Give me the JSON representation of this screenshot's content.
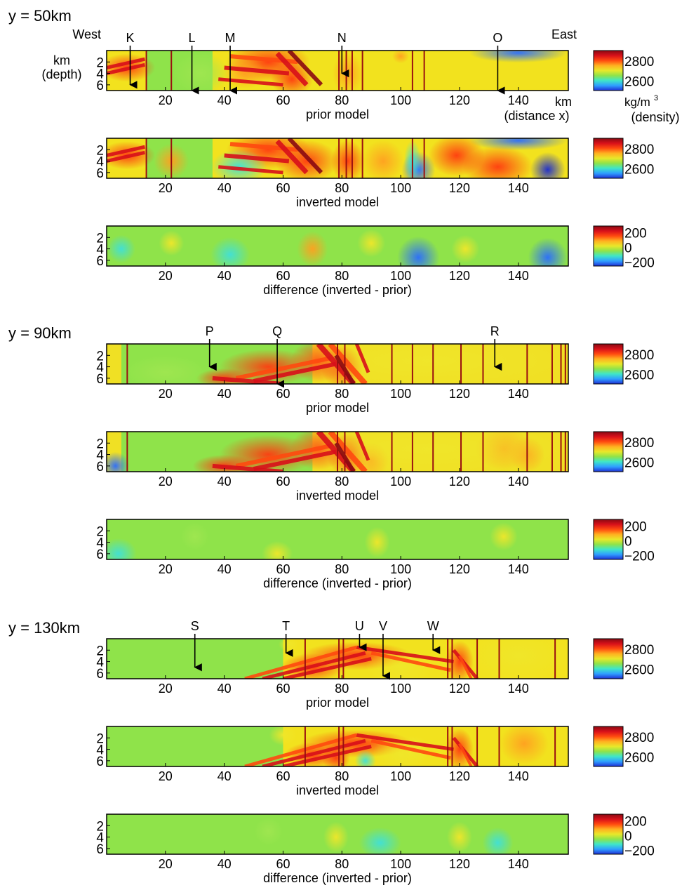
{
  "sections": [
    {
      "title": "y = 50km",
      "markers": [
        {
          "label": "K",
          "x": 8,
          "depth_end": 6
        },
        {
          "label": "L",
          "x": 29,
          "depth_end": 7
        },
        {
          "label": "M",
          "x": 42,
          "depth_end": 7
        },
        {
          "label": "N",
          "x": 80,
          "depth_end": 4
        },
        {
          "label": "O",
          "x": 133,
          "depth_end": 7
        }
      ],
      "direction_labels": {
        "left": "West",
        "right": "East"
      },
      "faults": [
        13.5,
        22,
        79,
        81.5,
        83.5,
        87,
        104,
        108
      ],
      "panels": [
        {
          "caption": "prior model",
          "kind": "prior",
          "colorbar": {
            "ticks": [
              "2800",
              "2600"
            ],
            "unit": "kg/m",
            "unit_sup": "3",
            "quantity": "(density)"
          }
        },
        {
          "caption": "inverted model",
          "kind": "inverted",
          "colorbar": {
            "ticks": [
              "2800",
              "2600"
            ]
          }
        },
        {
          "caption": "difference (inverted - prior)",
          "kind": "difference",
          "colorbar": {
            "ticks": [
              "200",
              "0",
              "−200"
            ]
          }
        }
      ]
    },
    {
      "title": "y = 90km",
      "markers": [
        {
          "label": "P",
          "x": 35,
          "depth_end": 4
        },
        {
          "label": "Q",
          "x": 58,
          "depth_end": 7
        },
        {
          "label": "R",
          "x": 132,
          "depth_end": 4
        }
      ],
      "faults": [
        7,
        78.5,
        81,
        97,
        104,
        111,
        120.5,
        128,
        143,
        151.5,
        154.5,
        156
      ],
      "panels": [
        {
          "caption": "prior model",
          "kind": "prior",
          "colorbar": {
            "ticks": [
              "2800",
              "2600"
            ]
          }
        },
        {
          "caption": "inverted model",
          "kind": "inverted",
          "colorbar": {
            "ticks": [
              "2800",
              "2600"
            ]
          }
        },
        {
          "caption": "difference (inverted - prior)",
          "kind": "difference",
          "colorbar": {
            "ticks": [
              "200",
              "0",
              "−200"
            ]
          }
        }
      ]
    },
    {
      "title": "y = 130km",
      "markers": [
        {
          "label": "S",
          "x": 30,
          "depth_end": 5
        },
        {
          "label": "T",
          "x": 61,
          "depth_end": 2.5
        },
        {
          "label": "U",
          "x": 86,
          "depth_end": 1.5
        },
        {
          "label": "V",
          "x": 94,
          "depth_end": 6.5
        },
        {
          "label": "W",
          "x": 111,
          "depth_end": 2
        }
      ],
      "faults": [
        67.5,
        79,
        80.5,
        116,
        117.5,
        126,
        133.5,
        152.5
      ],
      "panels": [
        {
          "caption": "prior model",
          "kind": "prior",
          "colorbar": {
            "ticks": [
              "2800",
              "2600"
            ]
          }
        },
        {
          "caption": "inverted model",
          "kind": "inverted",
          "colorbar": {
            "ticks": [
              "2800",
              "2600"
            ]
          }
        },
        {
          "caption": "difference (inverted - prior)",
          "kind": "difference",
          "colorbar": {
            "ticks": [
              "200",
              "0",
              "−200"
            ]
          }
        }
      ]
    }
  ],
  "axes": {
    "x_ticks": [
      20,
      40,
      60,
      80,
      100,
      120,
      140
    ],
    "y_ticks": [
      2,
      4,
      6
    ],
    "x_range": [
      0,
      157
    ],
    "depth_range": [
      0,
      7
    ],
    "x_unit": "km",
    "x_quantity": "(distance x)",
    "y_unit": "km",
    "y_quantity": "(depth)"
  },
  "colors": {
    "jet": [
      "#1f2fd6",
      "#2f9fff",
      "#3fe6c8",
      "#8fe34a",
      "#e8e82a",
      "#ffb020",
      "#ff4a10",
      "#d8101a",
      "#8a0a12"
    ],
    "panel_border": "#000000",
    "fault": "#9a1010"
  }
}
